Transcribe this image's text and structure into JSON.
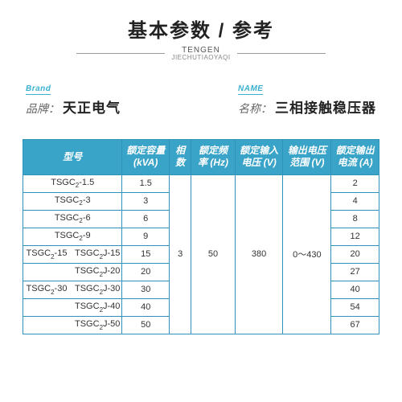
{
  "title": "基本参数 / 参考",
  "subtitle_en": "TENGEN",
  "subtitle_py": "JIECHUTIAOYAQI",
  "brand": {
    "en": "Brand",
    "label": "品牌：",
    "value": "天正电气"
  },
  "name": {
    "en": "NAME",
    "label": "名称：",
    "value": "三相接触稳压器"
  },
  "headers": [
    "型号",
    "额定容量\n(kVA)",
    "相\n数",
    "额定频\n率 (Hz)",
    "额定输入\n电压 (V)",
    "输出电压\n范围 (V)",
    "额定输出\n电流 (A)"
  ],
  "rows": [
    {
      "model": [
        "TSGC₂-1.5"
      ],
      "cap": "1.5",
      "cur": "2"
    },
    {
      "model": [
        "TSGC₂-3"
      ],
      "cap": "3",
      "cur": "4"
    },
    {
      "model": [
        "TSGC₂-6"
      ],
      "cap": "6",
      "cur": "8"
    },
    {
      "model": [
        "TSGC₂-9"
      ],
      "cap": "9",
      "cur": "12"
    },
    {
      "model": [
        "TSGC₂-15",
        "TSGC₂J-15"
      ],
      "cap": "15",
      "cur": "20"
    },
    {
      "model": [
        "",
        "TSGC₂J-20"
      ],
      "cap": "20",
      "cur": "27"
    },
    {
      "model": [
        "TSGC₂-30",
        "TSGC₂J-30"
      ],
      "cap": "30",
      "cur": "40"
    },
    {
      "model": [
        "",
        "TSGC₂J-40"
      ],
      "cap": "40",
      "cur": "54"
    },
    {
      "model": [
        "",
        "TSGC₂J-50"
      ],
      "cap": "50",
      "cur": "67"
    }
  ],
  "merged": {
    "phase": "3",
    "freq": "50",
    "vin": "380",
    "vout": "0～430"
  },
  "colors": {
    "header_bg": "#3aa3c8",
    "border": "#2f92b8",
    "accent": "#3ab0d0"
  },
  "col_widths": [
    "120px",
    "60px",
    "28px",
    "56px",
    "62px",
    "62px",
    "62px"
  ]
}
